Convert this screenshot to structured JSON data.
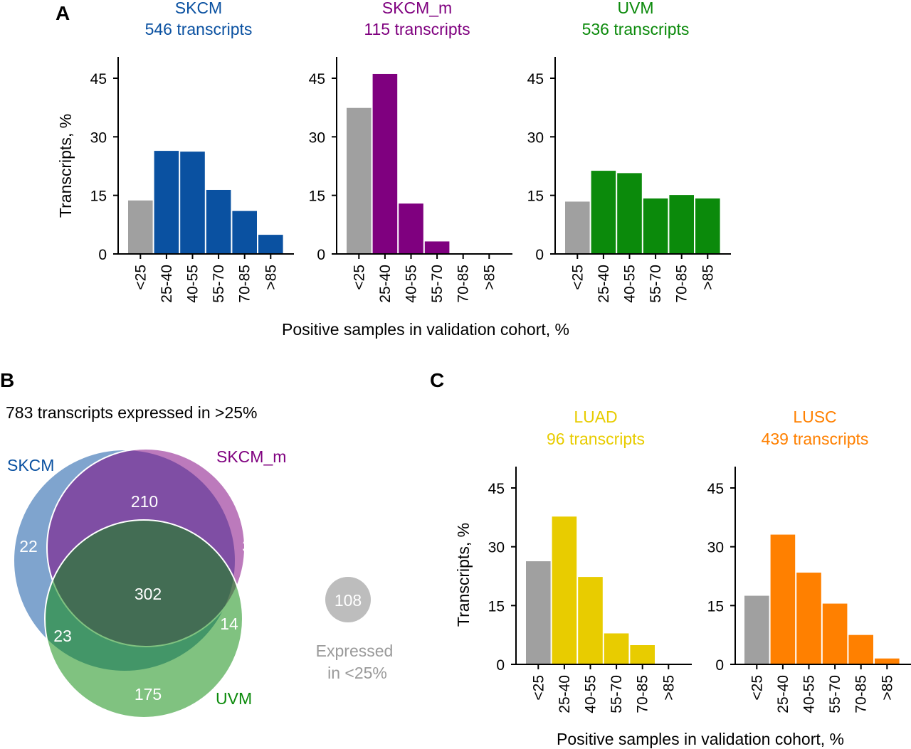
{
  "panels": {
    "a": "A",
    "b": "B",
    "c": "C"
  },
  "shared_xlabel": "Positive samples in validation cohort, %",
  "shared_ylabel": "Transcripts, %",
  "colors": {
    "gray": "#a0a0a0",
    "SKCM": "#0a51a1",
    "SKCM_m": "#7f007f",
    "UVM": "#0b8a0b",
    "LUAD": "#e8cc00",
    "LUSC": "#ff8000"
  },
  "chart_data": [
    {
      "type": "bar",
      "id": "SKCM",
      "title": "SKCM",
      "subtitle": "546 transcripts",
      "categories": [
        "<25",
        "25-40",
        "40-55",
        "55-70",
        "70-85",
        ">85"
      ],
      "values": [
        13.7,
        26.4,
        26.2,
        16.4,
        11.0,
        4.9
      ],
      "ylim": [
        0,
        45
      ],
      "yticks": [
        0,
        15,
        30,
        45
      ],
      "xlabel": "Positive samples in validation cohort, %",
      "ylabel": "Transcripts, %"
    },
    {
      "type": "bar",
      "id": "SKCM_m",
      "title": "SKCM_m",
      "subtitle": "115 transcripts",
      "categories": [
        "<25",
        "25-40",
        "40-55",
        "55-70",
        "70-85",
        ">85"
      ],
      "values": [
        37.4,
        46.1,
        12.9,
        3.2,
        0,
        0
      ],
      "ylim": [
        0,
        45
      ],
      "yticks": [
        0,
        15,
        30,
        45
      ],
      "xlabel": "Positive samples in validation cohort, %",
      "ylabel": ""
    },
    {
      "type": "bar",
      "id": "UVM",
      "title": "UVM",
      "subtitle": "536 transcripts",
      "categories": [
        "<25",
        "25-40",
        "40-55",
        "55-70",
        "70-85",
        ">85"
      ],
      "values": [
        13.4,
        21.3,
        20.7,
        14.2,
        15.1,
        14.2
      ],
      "ylim": [
        0,
        45
      ],
      "yticks": [
        0,
        15,
        30,
        45
      ],
      "xlabel": "Positive samples in validation cohort, %",
      "ylabel": ""
    },
    {
      "type": "bar",
      "id": "LUAD",
      "title": "LUAD",
      "subtitle": "96 transcripts",
      "categories": [
        "<25",
        "25-40",
        "40-55",
        "55-70",
        "70-85",
        ">85"
      ],
      "values": [
        26.3,
        37.7,
        22.3,
        7.9,
        4.9,
        0
      ],
      "ylim": [
        0,
        45
      ],
      "yticks": [
        0,
        15,
        30,
        45
      ],
      "xlabel": "Positive samples in validation cohort, %",
      "ylabel": "Transcripts, %"
    },
    {
      "type": "bar",
      "id": "LUSC",
      "title": "LUSC",
      "subtitle": "439 transcripts",
      "categories": [
        "<25",
        "25-40",
        "40-55",
        "55-70",
        "70-85",
        ">85"
      ],
      "values": [
        17.5,
        33.1,
        23.4,
        15.5,
        7.5,
        1.5
      ],
      "ylim": [
        0,
        45
      ],
      "yticks": [
        0,
        15,
        30,
        45
      ],
      "xlabel": "Positive samples in validation cohort, %",
      "ylabel": ""
    }
  ],
  "venn": {
    "title": "783 transcripts expressed in >25%",
    "sets": [
      "SKCM",
      "SKCM_m",
      "UVM"
    ],
    "regions": {
      "skcm_only": "22",
      "skcm_m_only": "37",
      "skcm_and_skcm_m": "210",
      "all_three": "302",
      "skcm_and_uvm": "23",
      "skcm_m_and_uvm": "14",
      "uvm_only": "175"
    },
    "outside_count": "108",
    "outside_label_line1": "Expressed",
    "outside_label_line2": "in <25%"
  }
}
